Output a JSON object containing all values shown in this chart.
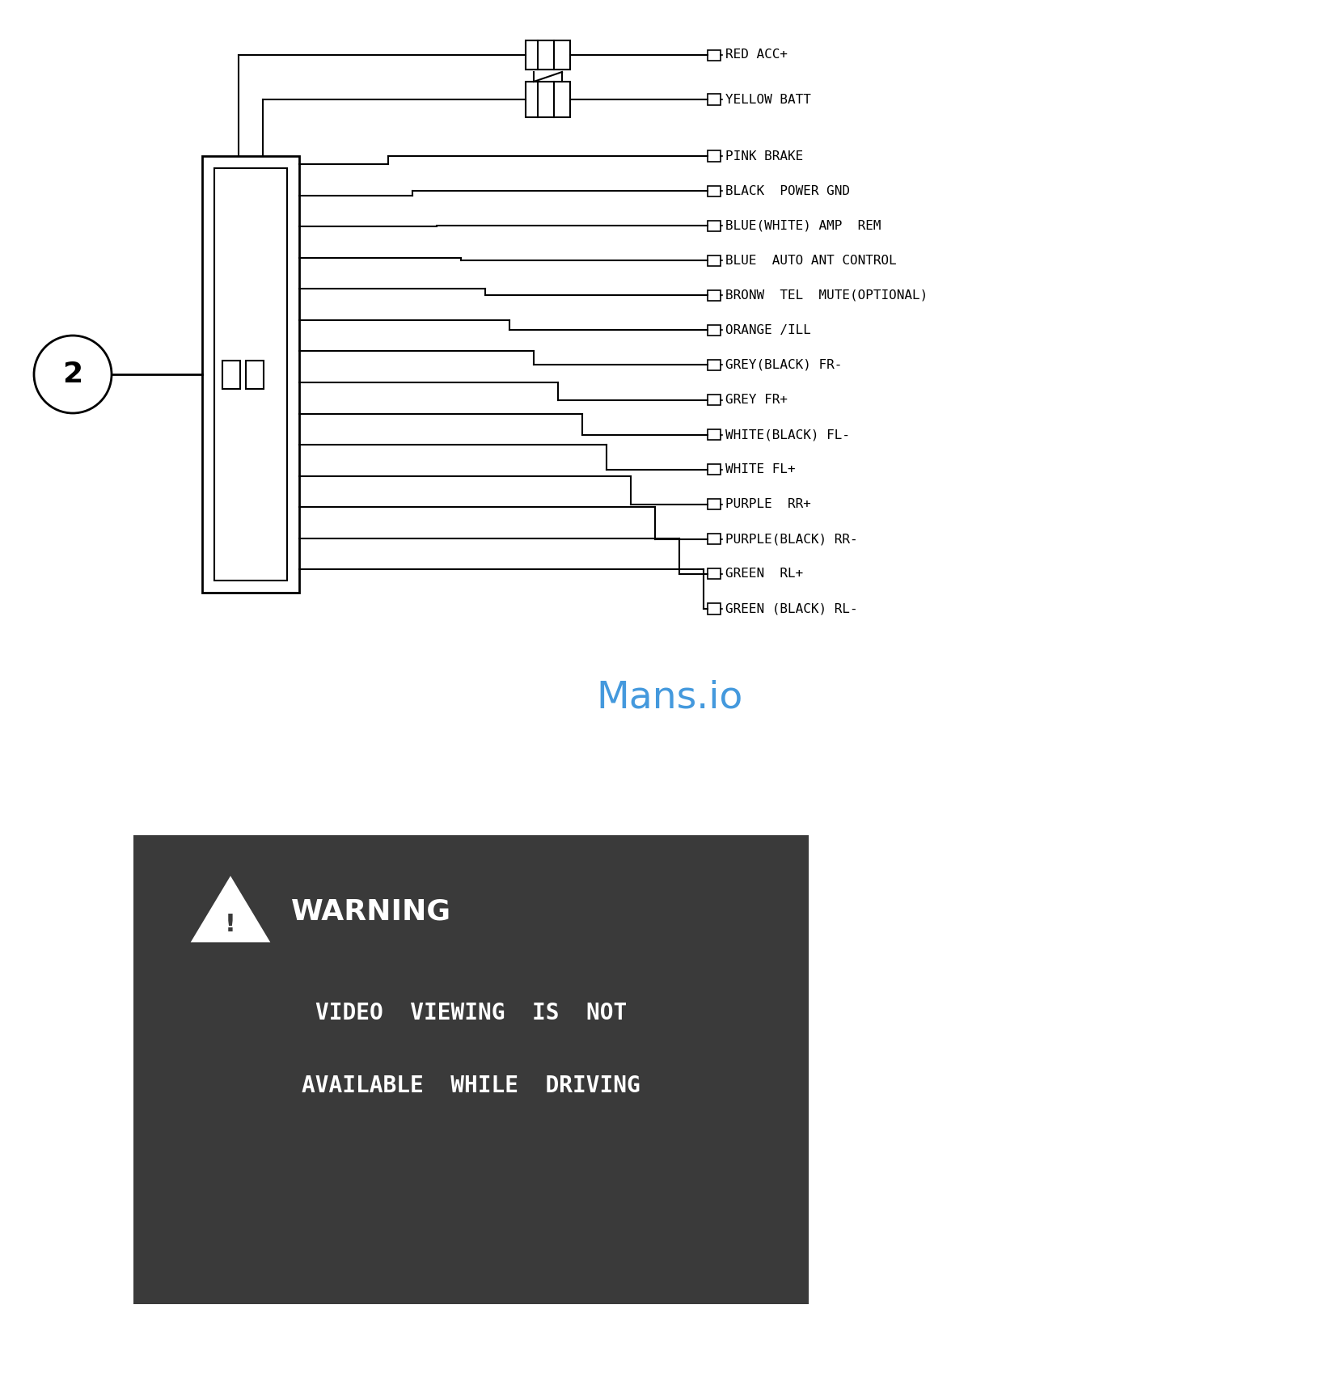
{
  "wire_labels": [
    "RED ACC+",
    "YELLOW BATT",
    "PINK BRAKE",
    "BLACK  POWER GND",
    "BLUE(WHITE) AMP  REM",
    "BLUE  AUTO ANT CONTROL",
    "BRONW  TEL  MUTE(OPTIONAL)",
    "ORANGE /ILL",
    "GREY(BLACK) FR-",
    "GREY FR+",
    "WHITE(BLACK) FL-",
    "WHITE FL+",
    "PURPLE  RR+",
    "PURPLE(BLACK) RR-",
    "GREEN  RL+",
    "GREEN (BLACK) RL-"
  ],
  "mansio_text": "Mans.io",
  "mansio_color": "#4499dd",
  "warning_text_line1": "VIDEO  VIEWING  IS  NOT",
  "warning_text_line2": "AVAILABLE  WHILE  DRIVING",
  "warning_title": "WARNING",
  "warning_bg": "#3a3a3a",
  "warning_text_color": "#ffffff",
  "bg_color": "#ffffff",
  "diagram_color": "#000000"
}
